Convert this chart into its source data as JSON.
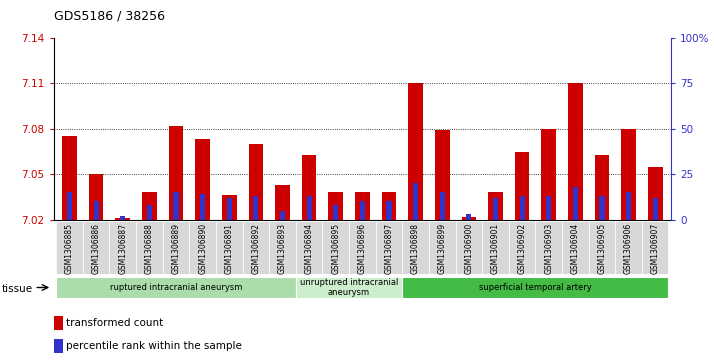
{
  "title": "GDS5186 / 38256",
  "samples": [
    "GSM1306885",
    "GSM1306886",
    "GSM1306887",
    "GSM1306888",
    "GSM1306889",
    "GSM1306890",
    "GSM1306891",
    "GSM1306892",
    "GSM1306893",
    "GSM1306894",
    "GSM1306895",
    "GSM1306896",
    "GSM1306897",
    "GSM1306898",
    "GSM1306899",
    "GSM1306900",
    "GSM1306901",
    "GSM1306902",
    "GSM1306903",
    "GSM1306904",
    "GSM1306905",
    "GSM1306906",
    "GSM1306907"
  ],
  "transformed_count": [
    7.075,
    7.05,
    7.021,
    7.038,
    7.082,
    7.073,
    7.036,
    7.07,
    7.043,
    7.063,
    7.038,
    7.038,
    7.038,
    7.11,
    7.079,
    7.022,
    7.038,
    7.065,
    7.08,
    7.11,
    7.063,
    7.08,
    7.055
  ],
  "percentile_rank": [
    15,
    10,
    2,
    8,
    15,
    14,
    12,
    13,
    5,
    13,
    8,
    10,
    10,
    20,
    15,
    3,
    12,
    13,
    13,
    18,
    13,
    15,
    12
  ],
  "bar_color": "#cc0000",
  "blue_color": "#3333cc",
  "ylim_left": [
    7.02,
    7.14
  ],
  "ylim_right": [
    0,
    100
  ],
  "yticks_left": [
    7.02,
    7.05,
    7.08,
    7.11,
    7.14
  ],
  "yticks_right": [
    0,
    25,
    50,
    75,
    100
  ],
  "ytick_labels_right": [
    "0",
    "25",
    "50",
    "75",
    "100%"
  ],
  "groups": [
    {
      "label": "ruptured intracranial aneurysm",
      "start": 0,
      "end": 8,
      "color": "#aaddaa"
    },
    {
      "label": "unruptured intracranial\naneurysm",
      "start": 9,
      "end": 12,
      "color": "#cceecc"
    },
    {
      "label": "superficial temporal artery",
      "start": 13,
      "end": 22,
      "color": "#44bb44"
    }
  ],
  "tissue_label": "tissue",
  "legend_items": [
    {
      "label": "transformed count",
      "color": "#cc0000"
    },
    {
      "label": "percentile rank within the sample",
      "color": "#3333cc"
    }
  ]
}
